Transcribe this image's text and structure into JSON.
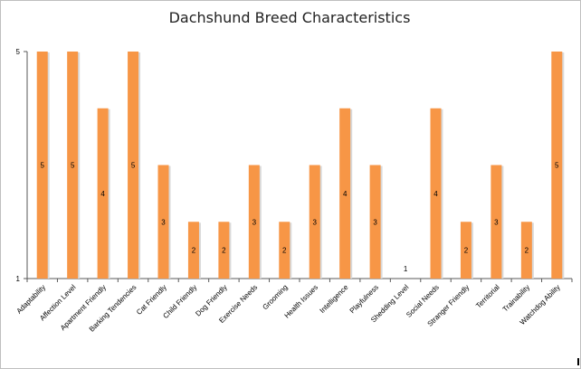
{
  "chart_data": {
    "type": "bar",
    "title": "Dachshund Breed Characteristics",
    "categories": [
      "Adaptability",
      "Affection Level",
      "Apartment Friendly",
      "Barking Tendencies",
      "Cat Friendly",
      "Child Friendly",
      "Dog Friendly",
      "Exercise Needs",
      "Grooming",
      "Health Issues",
      "Intelligence",
      "Playfulness",
      "Shedding Level",
      "Social Needs",
      "Stranger Friendly",
      "Territorial",
      "Trainability",
      "Watchdog Ability"
    ],
    "values": [
      5,
      5,
      4,
      5,
      3,
      2,
      2,
      3,
      2,
      3,
      4,
      3,
      1,
      4,
      2,
      3,
      2,
      5
    ],
    "ylim": [
      1,
      5
    ],
    "yticks": [
      "1",
      "5"
    ],
    "xlabel": "",
    "ylabel": "",
    "grid": false,
    "legend": "none",
    "bar_color": "#f79646",
    "data_labels": true
  }
}
